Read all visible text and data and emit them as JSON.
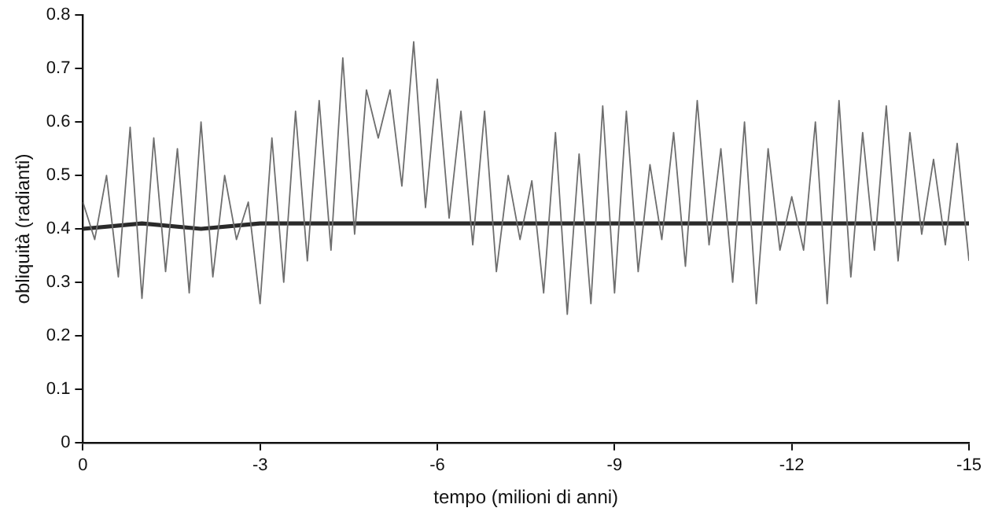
{
  "chart_data": {
    "type": "line",
    "xlabel": "tempo (milioni di anni)",
    "ylabel": "obliquità (radianti)",
    "xlim": [
      0,
      -15
    ],
    "xticks": [
      0,
      -3,
      -6,
      -9,
      -12,
      -15
    ],
    "ylim": [
      0,
      0.8
    ],
    "yticks": [
      0,
      0.1,
      0.2,
      0.3,
      0.4,
      0.5,
      0.6,
      0.7,
      0.8
    ],
    "grid": false,
    "legend": false,
    "marker": "none",
    "series": [
      {
        "color": "#6e6e6e",
        "line_style": "solid",
        "x": [
          0,
          -0.2,
          -0.4,
          -0.6,
          -0.8,
          -1.0,
          -1.2,
          -1.4,
          -1.6,
          -1.8,
          -2.0,
          -2.2,
          -2.4,
          -2.6,
          -2.8,
          -3.0,
          -3.2,
          -3.4,
          -3.6,
          -3.8,
          -4.0,
          -4.2,
          -4.4,
          -4.6,
          -4.8,
          -5.0,
          -5.2,
          -5.4,
          -5.6,
          -5.8,
          -6.0,
          -6.2,
          -6.4,
          -6.6,
          -6.8,
          -7.0,
          -7.2,
          -7.4,
          -7.6,
          -7.8,
          -8.0,
          -8.2,
          -8.4,
          -8.6,
          -8.8,
          -9.0,
          -9.2,
          -9.4,
          -9.6,
          -9.8,
          -10.0,
          -10.2,
          -10.4,
          -10.6,
          -10.8,
          -11.0,
          -11.2,
          -11.4,
          -11.6,
          -11.8,
          -12.0,
          -12.2,
          -12.4,
          -12.6,
          -12.8,
          -13.0,
          -13.2,
          -13.4,
          -13.6,
          -13.8,
          -14.0,
          -14.2,
          -14.4,
          -14.6,
          -14.8,
          -15.0
        ],
        "values": [
          0.45,
          0.38,
          0.5,
          0.31,
          0.59,
          0.27,
          0.57,
          0.32,
          0.55,
          0.28,
          0.6,
          0.31,
          0.5,
          0.38,
          0.45,
          0.26,
          0.57,
          0.3,
          0.62,
          0.34,
          0.64,
          0.36,
          0.72,
          0.39,
          0.66,
          0.57,
          0.66,
          0.48,
          0.75,
          0.44,
          0.68,
          0.42,
          0.62,
          0.37,
          0.62,
          0.32,
          0.5,
          0.38,
          0.49,
          0.28,
          0.58,
          0.24,
          0.54,
          0.26,
          0.63,
          0.28,
          0.62,
          0.32,
          0.52,
          0.38,
          0.58,
          0.33,
          0.64,
          0.37,
          0.55,
          0.3,
          0.6,
          0.26,
          0.55,
          0.36,
          0.46,
          0.36,
          0.6,
          0.26,
          0.64,
          0.31,
          0.58,
          0.36,
          0.63,
          0.34,
          0.58,
          0.39,
          0.53,
          0.37,
          0.56,
          0.34
        ]
      },
      {
        "color": "#2a2a2a",
        "line_style": "solid",
        "x": [
          0,
          -1,
          -2,
          -3,
          -4,
          -5,
          -6,
          -7,
          -8,
          -9,
          -10,
          -11,
          -12,
          -13,
          -14,
          -15
        ],
        "values": [
          0.4,
          0.41,
          0.4,
          0.41,
          0.41,
          0.41,
          0.41,
          0.41,
          0.41,
          0.41,
          0.41,
          0.41,
          0.41,
          0.41,
          0.41,
          0.41
        ]
      }
    ]
  }
}
